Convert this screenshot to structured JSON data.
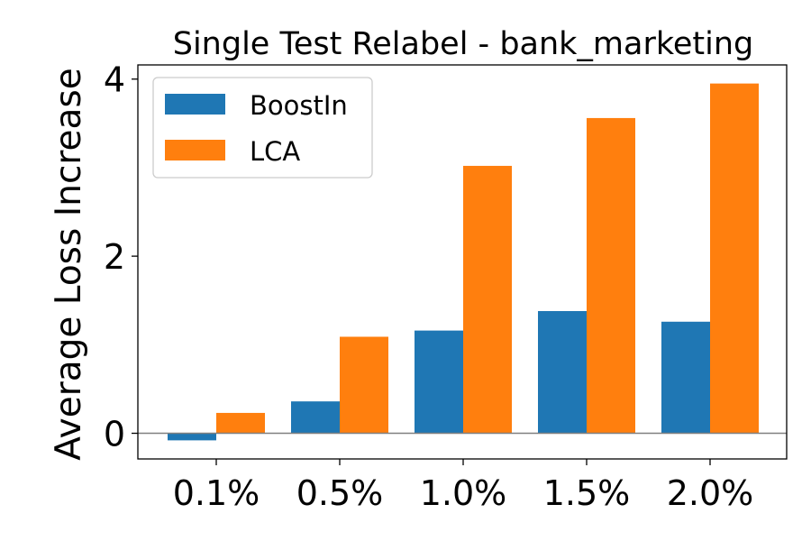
{
  "chart_data": {
    "type": "bar",
    "title": "Single Test Relabel - bank_marketing",
    "xlabel": "",
    "ylabel": "Average Loss Increase",
    "categories": [
      "0.1%",
      "0.5%",
      "1.0%",
      "1.5%",
      "2.0%"
    ],
    "series": [
      {
        "name": "BoostIn",
        "color": "#1f77b4",
        "values": [
          -0.08,
          0.36,
          1.16,
          1.38,
          1.26
        ]
      },
      {
        "name": "LCA",
        "color": "#ff7f0e",
        "values": [
          0.23,
          1.09,
          3.02,
          3.56,
          3.95
        ]
      }
    ],
    "ylim": [
      -0.29,
      4.16
    ],
    "yticks": [
      "0",
      "2",
      "4"
    ],
    "ytick_values": [
      0,
      2,
      4
    ],
    "grid": false,
    "legend_position": "top-left",
    "zero_line": true
  }
}
